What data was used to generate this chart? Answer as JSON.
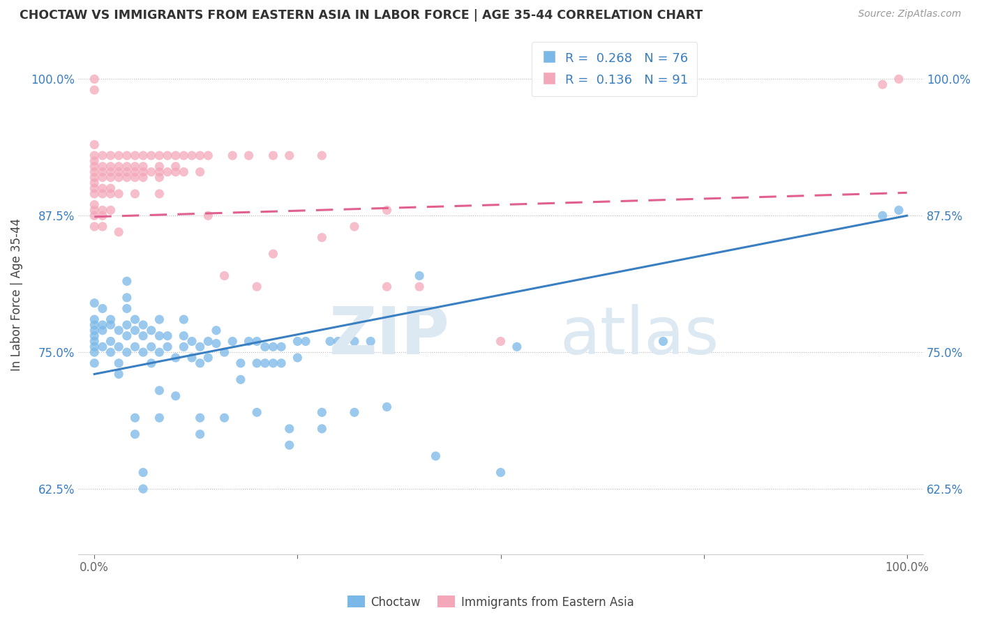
{
  "title": "CHOCTAW VS IMMIGRANTS FROM EASTERN ASIA IN LABOR FORCE | AGE 35-44 CORRELATION CHART",
  "source": "Source: ZipAtlas.com",
  "ylabel": "In Labor Force | Age 35-44",
  "xlim": [
    -0.02,
    1.02
  ],
  "ylim": [
    0.565,
    1.04
  ],
  "xticks": [
    0.0,
    0.25,
    0.5,
    0.75,
    1.0
  ],
  "xticklabels": [
    "0.0%",
    "",
    "",
    "",
    "100.0%"
  ],
  "yticks": [
    0.625,
    0.75,
    0.875,
    1.0
  ],
  "yticklabels": [
    "62.5%",
    "75.0%",
    "87.5%",
    "100.0%"
  ],
  "legend_labels": [
    "Choctaw",
    "Immigrants from Eastern Asia"
  ],
  "legend_R": [
    0.268,
    0.136
  ],
  "legend_N": [
    76,
    91
  ],
  "blue_color": "#7ab8e8",
  "pink_color": "#f4a7b9",
  "blue_line_color": "#3a7fc1",
  "pink_line_color": "#e06090",
  "blue_trend": [
    0.73,
    0.875
  ],
  "pink_trend": [
    0.874,
    0.896
  ],
  "choctaw_scatter": [
    [
      0.0,
      0.795
    ],
    [
      0.0,
      0.775
    ],
    [
      0.0,
      0.76
    ],
    [
      0.0,
      0.77
    ],
    [
      0.0,
      0.75
    ],
    [
      0.0,
      0.74
    ],
    [
      0.0,
      0.765
    ],
    [
      0.0,
      0.755
    ],
    [
      0.0,
      0.78
    ],
    [
      0.01,
      0.77
    ],
    [
      0.01,
      0.755
    ],
    [
      0.01,
      0.775
    ],
    [
      0.01,
      0.79
    ],
    [
      0.02,
      0.76
    ],
    [
      0.02,
      0.775
    ],
    [
      0.02,
      0.78
    ],
    [
      0.02,
      0.75
    ],
    [
      0.03,
      0.755
    ],
    [
      0.03,
      0.74
    ],
    [
      0.03,
      0.73
    ],
    [
      0.03,
      0.77
    ],
    [
      0.04,
      0.765
    ],
    [
      0.04,
      0.75
    ],
    [
      0.04,
      0.775
    ],
    [
      0.04,
      0.79
    ],
    [
      0.04,
      0.8
    ],
    [
      0.04,
      0.815
    ],
    [
      0.05,
      0.69
    ],
    [
      0.05,
      0.675
    ],
    [
      0.05,
      0.755
    ],
    [
      0.05,
      0.77
    ],
    [
      0.05,
      0.78
    ],
    [
      0.06,
      0.75
    ],
    [
      0.06,
      0.765
    ],
    [
      0.06,
      0.775
    ],
    [
      0.06,
      0.64
    ],
    [
      0.06,
      0.625
    ],
    [
      0.07,
      0.755
    ],
    [
      0.07,
      0.74
    ],
    [
      0.07,
      0.77
    ],
    [
      0.08,
      0.75
    ],
    [
      0.08,
      0.765
    ],
    [
      0.08,
      0.78
    ],
    [
      0.08,
      0.715
    ],
    [
      0.08,
      0.69
    ],
    [
      0.09,
      0.755
    ],
    [
      0.09,
      0.765
    ],
    [
      0.1,
      0.745
    ],
    [
      0.1,
      0.71
    ],
    [
      0.11,
      0.755
    ],
    [
      0.11,
      0.765
    ],
    [
      0.11,
      0.78
    ],
    [
      0.12,
      0.745
    ],
    [
      0.12,
      0.76
    ],
    [
      0.13,
      0.755
    ],
    [
      0.13,
      0.74
    ],
    [
      0.13,
      0.69
    ],
    [
      0.13,
      0.675
    ],
    [
      0.14,
      0.76
    ],
    [
      0.14,
      0.745
    ],
    [
      0.15,
      0.758
    ],
    [
      0.15,
      0.77
    ],
    [
      0.16,
      0.75
    ],
    [
      0.16,
      0.69
    ],
    [
      0.17,
      0.76
    ],
    [
      0.18,
      0.74
    ],
    [
      0.18,
      0.725
    ],
    [
      0.19,
      0.76
    ],
    [
      0.2,
      0.76
    ],
    [
      0.2,
      0.74
    ],
    [
      0.2,
      0.695
    ],
    [
      0.21,
      0.755
    ],
    [
      0.21,
      0.74
    ],
    [
      0.22,
      0.755
    ],
    [
      0.22,
      0.74
    ],
    [
      0.23,
      0.755
    ],
    [
      0.23,
      0.74
    ],
    [
      0.24,
      0.68
    ],
    [
      0.24,
      0.665
    ],
    [
      0.25,
      0.76
    ],
    [
      0.25,
      0.745
    ],
    [
      0.26,
      0.76
    ],
    [
      0.28,
      0.695
    ],
    [
      0.28,
      0.68
    ],
    [
      0.29,
      0.76
    ],
    [
      0.3,
      0.76
    ],
    [
      0.32,
      0.76
    ],
    [
      0.32,
      0.695
    ],
    [
      0.34,
      0.76
    ],
    [
      0.36,
      0.7
    ],
    [
      0.4,
      0.82
    ],
    [
      0.42,
      0.655
    ],
    [
      0.5,
      0.64
    ],
    [
      0.52,
      0.755
    ],
    [
      0.7,
      0.76
    ],
    [
      0.97,
      0.875
    ],
    [
      0.99,
      0.88
    ]
  ],
  "eastern_asia_scatter": [
    [
      0.0,
      0.99
    ],
    [
      0.0,
      1.0
    ],
    [
      0.0,
      0.94
    ],
    [
      0.0,
      0.925
    ],
    [
      0.0,
      0.9
    ],
    [
      0.0,
      0.915
    ],
    [
      0.0,
      0.93
    ],
    [
      0.0,
      0.91
    ],
    [
      0.0,
      0.92
    ],
    [
      0.0,
      0.905
    ],
    [
      0.0,
      0.895
    ],
    [
      0.0,
      0.885
    ],
    [
      0.0,
      0.875
    ],
    [
      0.0,
      0.865
    ],
    [
      0.0,
      0.88
    ],
    [
      0.01,
      0.93
    ],
    [
      0.01,
      0.915
    ],
    [
      0.01,
      0.9
    ],
    [
      0.01,
      0.92
    ],
    [
      0.01,
      0.91
    ],
    [
      0.01,
      0.895
    ],
    [
      0.01,
      0.88
    ],
    [
      0.01,
      0.865
    ],
    [
      0.01,
      0.875
    ],
    [
      0.02,
      0.93
    ],
    [
      0.02,
      0.915
    ],
    [
      0.02,
      0.9
    ],
    [
      0.02,
      0.92
    ],
    [
      0.02,
      0.91
    ],
    [
      0.02,
      0.895
    ],
    [
      0.02,
      0.88
    ],
    [
      0.03,
      0.93
    ],
    [
      0.03,
      0.915
    ],
    [
      0.03,
      0.92
    ],
    [
      0.03,
      0.91
    ],
    [
      0.03,
      0.895
    ],
    [
      0.03,
      0.86
    ],
    [
      0.04,
      0.93
    ],
    [
      0.04,
      0.915
    ],
    [
      0.04,
      0.92
    ],
    [
      0.04,
      0.91
    ],
    [
      0.05,
      0.93
    ],
    [
      0.05,
      0.915
    ],
    [
      0.05,
      0.92
    ],
    [
      0.05,
      0.91
    ],
    [
      0.05,
      0.895
    ],
    [
      0.06,
      0.93
    ],
    [
      0.06,
      0.915
    ],
    [
      0.06,
      0.92
    ],
    [
      0.06,
      0.91
    ],
    [
      0.07,
      0.93
    ],
    [
      0.07,
      0.915
    ],
    [
      0.08,
      0.93
    ],
    [
      0.08,
      0.915
    ],
    [
      0.08,
      0.92
    ],
    [
      0.08,
      0.895
    ],
    [
      0.08,
      0.91
    ],
    [
      0.09,
      0.93
    ],
    [
      0.09,
      0.915
    ],
    [
      0.1,
      0.93
    ],
    [
      0.1,
      0.915
    ],
    [
      0.1,
      0.92
    ],
    [
      0.11,
      0.93
    ],
    [
      0.11,
      0.915
    ],
    [
      0.12,
      0.93
    ],
    [
      0.13,
      0.93
    ],
    [
      0.13,
      0.915
    ],
    [
      0.14,
      0.93
    ],
    [
      0.14,
      0.875
    ],
    [
      0.16,
      0.82
    ],
    [
      0.17,
      0.93
    ],
    [
      0.19,
      0.93
    ],
    [
      0.2,
      0.81
    ],
    [
      0.22,
      0.93
    ],
    [
      0.24,
      0.93
    ],
    [
      0.28,
      0.93
    ],
    [
      0.36,
      0.81
    ],
    [
      0.4,
      0.81
    ],
    [
      0.5,
      0.76
    ],
    [
      0.97,
      0.995
    ],
    [
      0.99,
      1.0
    ],
    [
      0.22,
      0.84
    ],
    [
      0.28,
      0.855
    ],
    [
      0.32,
      0.865
    ],
    [
      0.36,
      0.88
    ]
  ]
}
